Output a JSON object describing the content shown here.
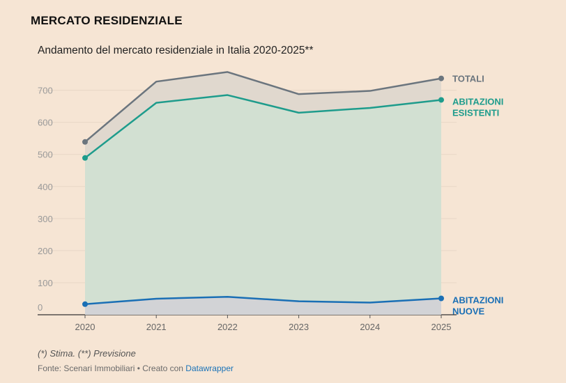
{
  "header": {
    "title": "MERCATO RESIDENZIALE",
    "subtitle": "Andamento del mercato residenziale in Italia 2020-2025**"
  },
  "footer": {
    "note": "(*) Stima. (**) Previsione",
    "source_prefix": "Fonte: Scenari Immobiliari • Creato con ",
    "source_link": "Datawrapper"
  },
  "chart_data": {
    "type": "area",
    "categories": [
      "2020",
      "2021",
      "2022",
      "2023",
      "2024",
      "2025"
    ],
    "yticks": [
      "0",
      "100",
      "200",
      "300",
      "400",
      "500",
      "600",
      "700"
    ],
    "ylim": [
      0,
      760
    ],
    "series": [
      {
        "name": "TOTALI",
        "values": [
          539,
          727,
          757,
          688,
          698,
          737
        ],
        "color": "#6b757e",
        "fill": "#e0d8ce"
      },
      {
        "name": "ABITAZIONI ESISTENTI",
        "values": [
          489,
          661,
          685,
          630,
          645,
          670
        ],
        "color": "#1e9c8c",
        "fill": "#d2e0d2"
      },
      {
        "name": "ABITAZIONI NUOVE",
        "values": [
          33,
          50,
          56,
          42,
          38,
          51
        ],
        "color": "#1a6fb5",
        "fill": "#d2d3d6"
      }
    ],
    "series_labels": [
      [
        "TOTALI"
      ],
      [
        "ABITAZIONI",
        "ESISTENTI"
      ],
      [
        "ABITAZIONI",
        "NUOVE"
      ]
    ],
    "grid": true,
    "legend": "direct-labels-right"
  }
}
